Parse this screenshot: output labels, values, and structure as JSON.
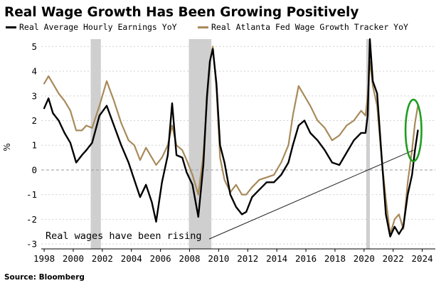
{
  "chart_data": {
    "type": "line",
    "title": "Real Wage Growth Has Been Growing Positively",
    "ylabel": "%",
    "ylim": [
      -3.2,
      5.3
    ],
    "xlim": [
      1997.8,
      2024.9
    ],
    "yticks": [
      "5",
      "4",
      "3",
      "2",
      "1",
      "0",
      "-1",
      "-2",
      "-3"
    ],
    "xticks": [
      "1998",
      "2000",
      "2002",
      "2004",
      "2006",
      "2008",
      "2010",
      "2012",
      "2014",
      "2016",
      "2018",
      "2020",
      "2022",
      "2024"
    ],
    "legend_position": "top",
    "grid": "horizontal dotted",
    "zero_line": "dashed",
    "recession_shading": [
      [
        2001.2,
        2001.9
      ],
      [
        2007.95,
        2009.5
      ],
      [
        2020.15,
        2020.4
      ]
    ],
    "series": [
      {
        "name": "Real Average Hourly Earnings YoY",
        "color": "#000000",
        "x": [
          1998.0,
          1998.3,
          1998.6,
          1999.0,
          1999.4,
          1999.8,
          2000.2,
          2000.6,
          2000.9,
          2001.3,
          2001.8,
          2002.3,
          2002.8,
          2003.3,
          2003.8,
          2004.2,
          2004.6,
          2005.0,
          2005.4,
          2005.7,
          2006.1,
          2006.5,
          2006.8,
          2007.1,
          2007.5,
          2007.8,
          2008.2,
          2008.6,
          2008.95,
          2009.2,
          2009.4,
          2009.6,
          2009.85,
          2010.1,
          2010.4,
          2010.8,
          2011.2,
          2011.6,
          2011.9,
          2012.3,
          2012.8,
          2013.3,
          2013.8,
          2014.3,
          2014.8,
          2015.1,
          2015.5,
          2015.9,
          2016.3,
          2016.8,
          2017.3,
          2017.8,
          2018.3,
          2018.8,
          2019.3,
          2019.8,
          2020.1,
          2020.25,
          2020.4,
          2020.6,
          2020.9,
          2021.2,
          2021.5,
          2021.8,
          2022.1,
          2022.4,
          2022.7,
          2023.0,
          2023.3,
          2023.5,
          2023.7
        ],
        "values": [
          2.5,
          2.9,
          2.3,
          2.0,
          1.5,
          1.1,
          0.3,
          0.6,
          0.8,
          1.1,
          2.2,
          2.6,
          1.8,
          1.0,
          0.3,
          -0.4,
          -1.1,
          -0.6,
          -1.3,
          -2.1,
          -0.5,
          0.6,
          2.7,
          0.6,
          0.5,
          -0.1,
          -0.6,
          -1.9,
          0.2,
          3.0,
          4.4,
          4.9,
          3.5,
          1.0,
          0.3,
          -1.0,
          -1.5,
          -1.8,
          -1.7,
          -1.1,
          -0.8,
          -0.5,
          -0.5,
          -0.2,
          0.3,
          1.0,
          1.8,
          2.0,
          1.5,
          1.2,
          0.8,
          0.3,
          0.2,
          0.7,
          1.2,
          1.5,
          1.5,
          2.2,
          5.3,
          3.6,
          3.1,
          0.6,
          -1.8,
          -2.7,
          -2.3,
          -2.6,
          -2.3,
          -1.0,
          -0.2,
          0.8,
          1.6
        ]
      },
      {
        "name": "Real Atlanta Fed Wage Growth Tracker YoY",
        "color": "#a88a5a",
        "x": [
          1998.0,
          1998.3,
          1998.6,
          1999.0,
          1999.4,
          1999.8,
          2000.2,
          2000.6,
          2000.9,
          2001.3,
          2001.8,
          2002.3,
          2002.8,
          2003.3,
          2003.8,
          2004.2,
          2004.6,
          2005.0,
          2005.4,
          2005.7,
          2006.1,
          2006.5,
          2006.8,
          2007.1,
          2007.5,
          2007.8,
          2008.2,
          2008.6,
          2008.95,
          2009.2,
          2009.4,
          2009.6,
          2009.85,
          2010.1,
          2010.4,
          2010.8,
          2011.2,
          2011.6,
          2011.9,
          2012.3,
          2012.8,
          2013.3,
          2013.8,
          2014.3,
          2014.8,
          2015.1,
          2015.5,
          2015.9,
          2016.3,
          2016.8,
          2017.3,
          2017.8,
          2018.3,
          2018.8,
          2019.3,
          2019.8,
          2020.1,
          2020.25,
          2020.4,
          2020.6,
          2020.9,
          2021.2,
          2021.5,
          2021.8,
          2022.1,
          2022.4,
          2022.7,
          2023.0,
          2023.3,
          2023.5,
          2023.7
        ],
        "values": [
          3.5,
          3.8,
          3.5,
          3.1,
          2.8,
          2.4,
          1.6,
          1.6,
          1.8,
          1.7,
          2.6,
          3.6,
          2.8,
          1.9,
          1.2,
          1.0,
          0.4,
          0.9,
          0.5,
          0.2,
          0.5,
          1.0,
          1.8,
          1.0,
          0.8,
          0.4,
          -0.2,
          -1.0,
          0.6,
          2.8,
          4.4,
          5.0,
          3.3,
          0.5,
          -0.4,
          -0.9,
          -0.6,
          -1.0,
          -1.0,
          -0.7,
          -0.4,
          -0.3,
          -0.2,
          0.3,
          1.0,
          2.2,
          3.4,
          3.0,
          2.6,
          2.0,
          1.7,
          1.2,
          1.4,
          1.8,
          2.0,
          2.4,
          2.2,
          3.0,
          4.4,
          3.4,
          2.6,
          0.5,
          -1.2,
          -2.6,
          -2.0,
          -1.8,
          -2.4,
          -0.5,
          0.8,
          1.9,
          2.6
        ]
      }
    ],
    "annotations": [
      {
        "text": "Real wages have been rising",
        "type": "trend-line",
        "from": [
          2009.6,
          -2.8
        ],
        "to": [
          2023.4,
          0.8
        ]
      },
      {
        "type": "ellipse-highlight",
        "color": "#1e9e1e",
        "center": [
          2023.4,
          1.6
        ],
        "rx_years": 0.55,
        "ry_units": 1.25
      }
    ],
    "source": "Source: Bloomberg"
  }
}
